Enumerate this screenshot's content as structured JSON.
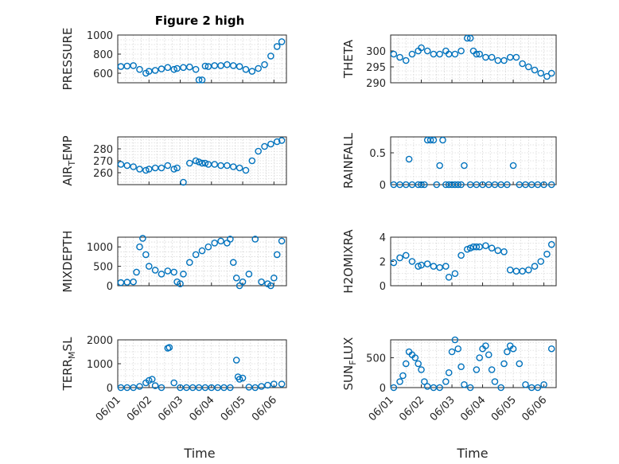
{
  "figure": {
    "title": "Figure 2 high",
    "xlabel": "Time",
    "marker_color": "#0072BD",
    "x_ticks": [
      "06/01",
      "06/02",
      "06/03",
      "06/04",
      "06/05",
      "06/06"
    ]
  },
  "chart_data": [
    {
      "type": "scatter",
      "ylabel": "PRESSURE",
      "ylim": [
        500,
        1000
      ],
      "yticks": [
        600,
        800,
        1000
      ],
      "grid": true,
      "x": [
        0.1,
        0.3,
        0.5,
        0.7,
        0.9,
        1.0,
        1.2,
        1.4,
        1.6,
        1.8,
        1.9,
        2.1,
        2.3,
        2.5,
        2.6,
        2.7,
        2.8,
        2.9,
        3.1,
        3.3,
        3.5,
        3.7,
        3.9,
        4.1,
        4.3,
        4.5,
        4.7,
        4.9,
        5.1,
        5.25
      ],
      "y": [
        670,
        675,
        680,
        640,
        600,
        620,
        630,
        645,
        660,
        640,
        650,
        660,
        665,
        640,
        530,
        530,
        675,
        670,
        680,
        680,
        690,
        680,
        670,
        640,
        620,
        650,
        690,
        780,
        880,
        930
      ]
    },
    {
      "type": "scatter",
      "ylabel": "THETA",
      "ylim": [
        290,
        305
      ],
      "yticks": [
        290,
        295,
        300
      ],
      "grid": true,
      "x": [
        0.1,
        0.3,
        0.5,
        0.7,
        0.9,
        1.0,
        1.2,
        1.4,
        1.6,
        1.8,
        1.9,
        2.1,
        2.3,
        2.5,
        2.6,
        2.7,
        2.8,
        2.9,
        3.1,
        3.3,
        3.5,
        3.7,
        3.9,
        4.1,
        4.3,
        4.5,
        4.7,
        4.9,
        5.1,
        5.25
      ],
      "y": [
        299,
        298,
        297,
        299,
        300,
        301,
        300,
        299,
        299,
        300,
        299,
        299,
        300,
        304,
        304,
        300,
        299,
        299,
        298,
        298,
        297,
        297,
        298,
        298,
        296,
        295,
        294,
        293,
        292,
        293
      ]
    },
    {
      "type": "scatter",
      "ylabel": "AIR",
      "ylabel_sub": "T",
      "ylabel_rest": "EMP",
      "ylim": [
        250,
        290
      ],
      "yticks": [
        260,
        270,
        280
      ],
      "grid": true,
      "x": [
        0.1,
        0.3,
        0.5,
        0.7,
        0.9,
        1.0,
        1.2,
        1.4,
        1.6,
        1.8,
        1.9,
        2.1,
        2.3,
        2.5,
        2.6,
        2.7,
        2.8,
        2.9,
        3.1,
        3.3,
        3.5,
        3.7,
        3.9,
        4.1,
        4.3,
        4.5,
        4.7,
        4.9,
        5.1,
        5.25
      ],
      "y": [
        267,
        266,
        265,
        263,
        262,
        263,
        264,
        264,
        266,
        263,
        264,
        252,
        268,
        270,
        269,
        268,
        268,
        267,
        267,
        266,
        266,
        265,
        264,
        262,
        270,
        278,
        282,
        284,
        286,
        287
      ]
    },
    {
      "type": "scatter",
      "ylabel": "RAINFALL",
      "ylim": [
        0,
        0.75
      ],
      "yticks": [
        0,
        0.5
      ],
      "grid": true,
      "x": [
        0.1,
        0.3,
        0.5,
        0.6,
        0.7,
        0.9,
        1.0,
        1.1,
        1.2,
        1.3,
        1.4,
        1.5,
        1.6,
        1.7,
        1.8,
        1.9,
        2.0,
        2.1,
        2.2,
        2.3,
        2.4,
        2.6,
        2.8,
        3.0,
        3.2,
        3.4,
        3.6,
        3.8,
        4.0,
        4.2,
        4.4,
        4.6,
        4.8,
        5.0,
        5.25
      ],
      "y": [
        0,
        0,
        0,
        0.4,
        0,
        0,
        0,
        0,
        0.7,
        0.7,
        0.7,
        0,
        0.3,
        0.7,
        0,
        0,
        0,
        0,
        0,
        0,
        0.3,
        0,
        0,
        0,
        0,
        0,
        0,
        0,
        0.3,
        0,
        0,
        0,
        0,
        0,
        0
      ]
    },
    {
      "type": "scatter",
      "ylabel": "MIXDEPTH",
      "ylim": [
        0,
        1250
      ],
      "yticks": [
        0,
        500,
        1000
      ],
      "grid": true,
      "x": [
        0.1,
        0.3,
        0.5,
        0.6,
        0.7,
        0.8,
        0.9,
        1.0,
        1.2,
        1.4,
        1.6,
        1.8,
        1.9,
        2.0,
        2.1,
        2.3,
        2.5,
        2.7,
        2.9,
        3.1,
        3.3,
        3.5,
        3.6,
        3.7,
        3.8,
        3.9,
        4.0,
        4.2,
        4.4,
        4.6,
        4.8,
        4.9,
        5.0,
        5.1,
        5.25
      ],
      "y": [
        80,
        90,
        100,
        350,
        1000,
        1220,
        800,
        500,
        400,
        300,
        380,
        350,
        100,
        50,
        300,
        600,
        800,
        900,
        1000,
        1100,
        1150,
        1100,
        1200,
        600,
        200,
        0,
        100,
        300,
        1200,
        100,
        50,
        0,
        200,
        800,
        1150
      ]
    },
    {
      "type": "scatter",
      "ylabel": "H2OMIXRA",
      "ylim": [
        0,
        4
      ],
      "yticks": [
        0,
        2,
        4
      ],
      "grid": true,
      "x": [
        0.1,
        0.3,
        0.5,
        0.7,
        0.9,
        1.0,
        1.2,
        1.4,
        1.6,
        1.8,
        1.9,
        2.1,
        2.3,
        2.5,
        2.6,
        2.7,
        2.8,
        2.9,
        3.1,
        3.3,
        3.5,
        3.7,
        3.9,
        4.1,
        4.3,
        4.5,
        4.7,
        4.9,
        5.1,
        5.25
      ],
      "y": [
        1.9,
        2.3,
        2.5,
        2.0,
        1.6,
        1.7,
        1.8,
        1.6,
        1.5,
        1.6,
        0.7,
        1.0,
        2.5,
        3.0,
        3.1,
        3.2,
        3.2,
        3.2,
        3.3,
        3.1,
        2.9,
        2.8,
        1.3,
        1.2,
        1.2,
        1.3,
        1.6,
        2.0,
        2.6,
        3.4
      ]
    },
    {
      "type": "scatter",
      "ylabel": "TERR",
      "ylabel_sub": "M",
      "ylabel_rest": "SL",
      "ylim": [
        0,
        2000
      ],
      "yticks": [
        0,
        1000,
        2000
      ],
      "grid": true,
      "x": [
        0.1,
        0.3,
        0.5,
        0.7,
        0.9,
        1.0,
        1.1,
        1.2,
        1.4,
        1.6,
        1.65,
        1.8,
        2.0,
        2.2,
        2.4,
        2.6,
        2.8,
        3.0,
        3.2,
        3.4,
        3.6,
        3.8,
        3.85,
        3.9,
        4.0,
        4.2,
        4.4,
        4.6,
        4.8,
        5.0,
        5.25
      ],
      "y": [
        0,
        0,
        0,
        50,
        200,
        300,
        350,
        80,
        0,
        1650,
        1680,
        200,
        0,
        0,
        0,
        0,
        0,
        0,
        0,
        0,
        0,
        1150,
        450,
        350,
        400,
        20,
        0,
        50,
        100,
        150,
        150
      ]
    },
    {
      "type": "scatter",
      "ylabel": "SUN",
      "ylabel_sub": "F",
      "ylabel_rest": "LUX",
      "ylim": [
        0,
        800
      ],
      "yticks": [
        0,
        500
      ],
      "grid": true,
      "x": [
        0.1,
        0.3,
        0.4,
        0.5,
        0.6,
        0.7,
        0.8,
        0.9,
        1.0,
        1.1,
        1.2,
        1.4,
        1.6,
        1.8,
        1.9,
        2.0,
        2.1,
        2.2,
        2.3,
        2.4,
        2.6,
        2.8,
        2.9,
        3.0,
        3.1,
        3.2,
        3.3,
        3.4,
        3.6,
        3.7,
        3.8,
        3.9,
        4.0,
        4.2,
        4.4,
        4.6,
        4.8,
        5.0,
        5.25
      ],
      "y": [
        0,
        100,
        200,
        400,
        600,
        550,
        500,
        400,
        300,
        100,
        20,
        0,
        0,
        100,
        250,
        600,
        800,
        650,
        350,
        50,
        0,
        300,
        500,
        650,
        700,
        550,
        300,
        100,
        0,
        400,
        600,
        700,
        650,
        400,
        50,
        0,
        0,
        50,
        650
      ]
    }
  ]
}
